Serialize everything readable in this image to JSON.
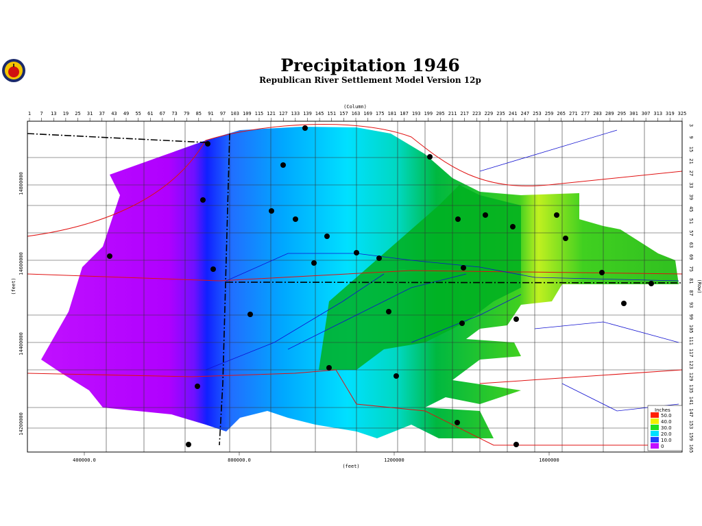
{
  "header": {
    "title": "Precipitation  1946",
    "subtitle": "Republican  River  Settlement  Model  Version  12p"
  },
  "top_axis": {
    "label": "(Column)",
    "ticks": [
      "1",
      "7",
      "13",
      "19",
      "25",
      "31",
      "37",
      "43",
      "49",
      "55",
      "61",
      "67",
      "73",
      "79",
      "85",
      "91",
      "97",
      "103",
      "109",
      "115",
      "121",
      "127",
      "133",
      "139",
      "145",
      "151",
      "157",
      "163",
      "169",
      "175",
      "181",
      "187",
      "193",
      "199",
      "205",
      "211",
      "217",
      "223",
      "229",
      "235",
      "241",
      "247",
      "253",
      "259",
      "265",
      "271",
      "277",
      "283",
      "289",
      "295",
      "301",
      "307",
      "313",
      "319",
      "325"
    ]
  },
  "right_axis": {
    "label": "(Row)",
    "ticks": [
      "3",
      "9",
      "15",
      "21",
      "27",
      "33",
      "39",
      "45",
      "51",
      "57",
      "63",
      "69",
      "75",
      "81",
      "87",
      "93",
      "99",
      "105",
      "111",
      "117",
      "123",
      "129",
      "135",
      "141",
      "147",
      "153",
      "159",
      "165"
    ]
  },
  "bottom_axis": {
    "label": "(feet)",
    "ticks": [
      "400000.0",
      "800000.0",
      "1200000",
      "1600000"
    ]
  },
  "left_axis": {
    "label": "(feet)",
    "ticks": [
      "14800000",
      "14600000",
      "14400000",
      "14200000"
    ]
  },
  "legend": {
    "title": "Inches",
    "labels": [
      "50.0",
      "40.0",
      "30.0",
      "20.0",
      "10.0",
      "0"
    ]
  }
}
